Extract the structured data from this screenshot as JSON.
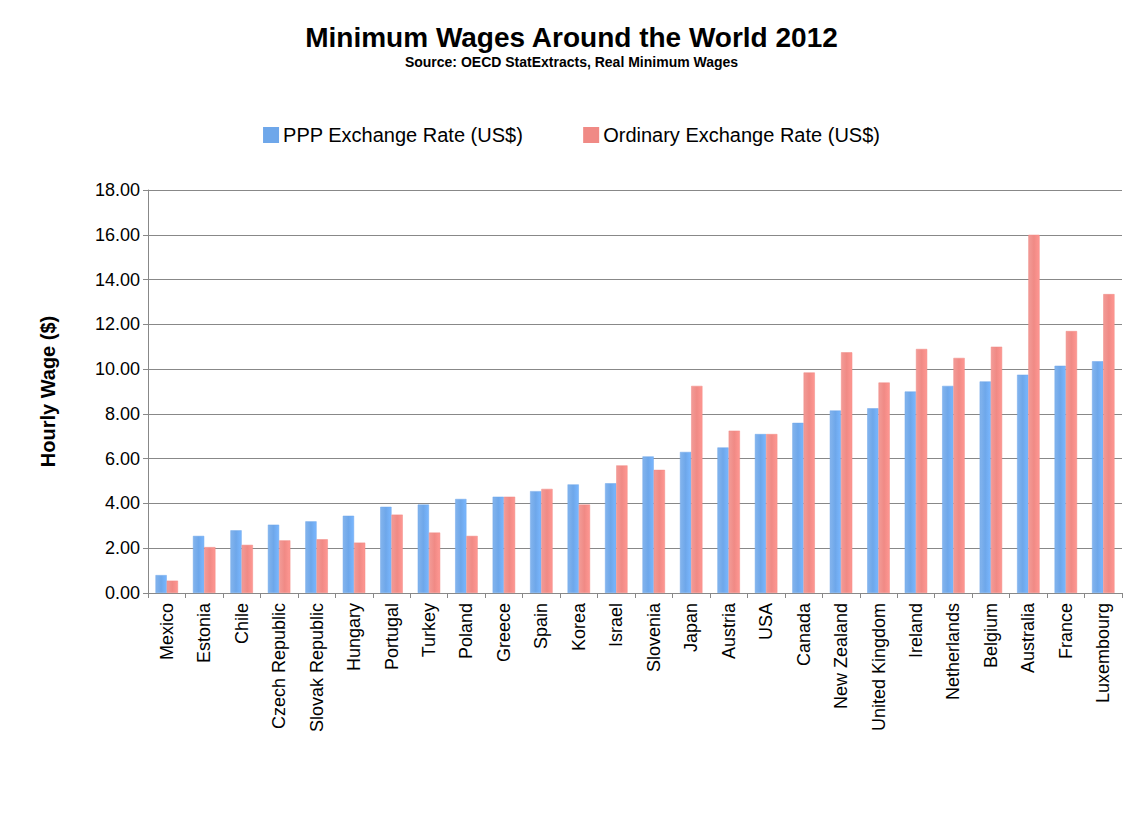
{
  "chart_data": {
    "type": "bar",
    "title": "Minimum Wages Around the World 2012",
    "subtitle": "Source: OECD StatExtracts, Real Minimum Wages",
    "y_label": "Hourly Wage ($)",
    "categories": [
      "Mexico",
      "Estonia",
      "Chile",
      "Czech Republic",
      "Slovak Republic",
      "Hungary",
      "Portugal",
      "Turkey",
      "Poland",
      "Greece",
      "Spain",
      "Korea",
      "Israel",
      "Slovenia",
      "Japan",
      "Austria",
      "USA",
      "Canada",
      "New Zealand",
      "United Kingdom",
      "Ireland",
      "Netherlands",
      "Belgium",
      "Australia",
      "France",
      "Luxembourg"
    ],
    "series": [
      {
        "name": "PPP Exchange Rate (US$)",
        "color": "#6ea7ea",
        "values": [
          0.8,
          2.55,
          2.8,
          3.05,
          3.2,
          3.45,
          3.85,
          3.95,
          4.2,
          4.3,
          4.55,
          4.85,
          4.9,
          6.1,
          6.3,
          6.5,
          7.1,
          7.6,
          8.15,
          8.25,
          9.0,
          9.25,
          9.45,
          9.75,
          10.15,
          10.35
        ]
      },
      {
        "name": "Ordinary Exchange Rate (US$)",
        "color": "#f08a85",
        "values": [
          0.55,
          2.05,
          2.15,
          2.35,
          2.4,
          2.25,
          3.5,
          2.7,
          2.55,
          4.3,
          4.65,
          3.95,
          5.7,
          5.5,
          9.25,
          7.25,
          7.1,
          9.85,
          10.75,
          9.4,
          10.9,
          10.5,
          11.0,
          16.0,
          11.7,
          13.35
        ]
      }
    ],
    "ylim": [
      0,
      18
    ],
    "yticks": [
      {
        "value": 0,
        "label": "0.00"
      },
      {
        "value": 2,
        "label": "2.00"
      },
      {
        "value": 4,
        "label": "4.00"
      },
      {
        "value": 6,
        "label": "6.00"
      },
      {
        "value": 8,
        "label": "8.00"
      },
      {
        "value": 10,
        "label": "10.00"
      },
      {
        "value": 12,
        "label": "12.00"
      },
      {
        "value": 14,
        "label": "14.00"
      },
      {
        "value": 16,
        "label": "16.00"
      },
      {
        "value": 18,
        "label": "18.00"
      }
    ],
    "grid": true,
    "legend": "top",
    "data_labels": false
  }
}
